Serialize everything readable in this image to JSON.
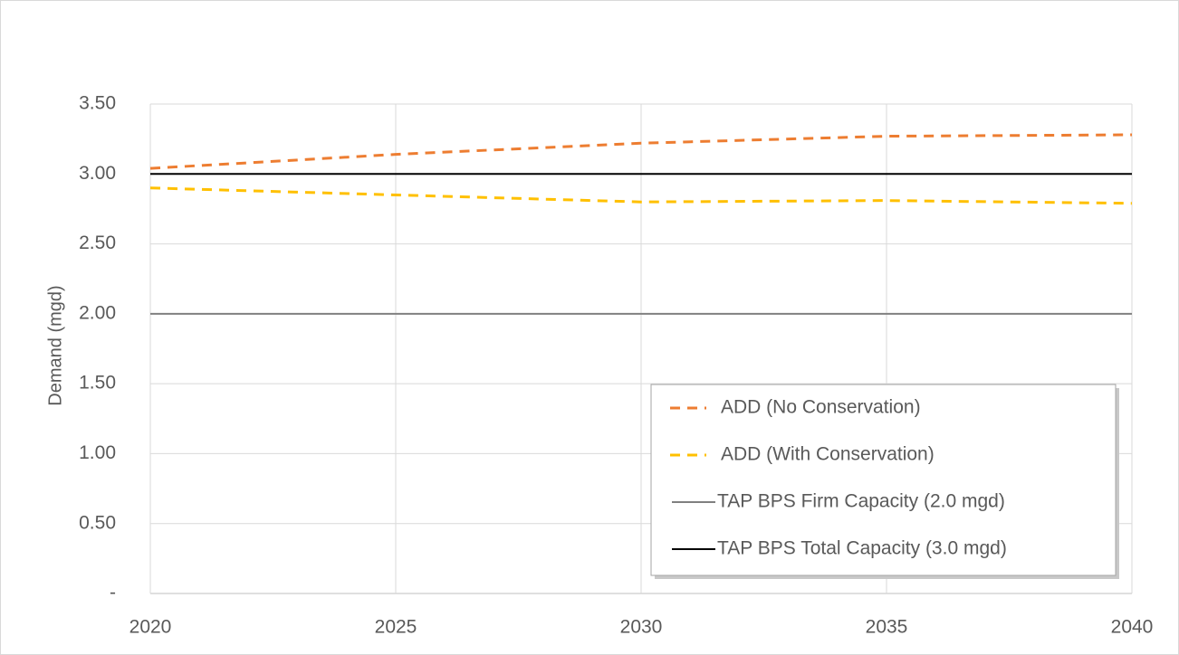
{
  "chart_data": {
    "type": "line",
    "y_label": "Demand (mgd)",
    "x": [
      2020,
      2025,
      2030,
      2035,
      2040
    ],
    "series": [
      {
        "name": "ADD (No Conservation)",
        "color": "#ED7D31",
        "dashed": true,
        "values": [
          3.04,
          3.14,
          3.22,
          3.27,
          3.28
        ]
      },
      {
        "name": "ADD (With Conservation)",
        "color": "#FFC000",
        "dashed": true,
        "values": [
          2.9,
          2.85,
          2.8,
          2.81,
          2.79
        ]
      },
      {
        "name": "TAP BPS Firm Capacity (2.0 mgd)",
        "color": "#808080",
        "dashed": false,
        "values": [
          2.0,
          2.0,
          2.0,
          2.0,
          2.0
        ]
      },
      {
        "name": "TAP BPS Total Capacity (3.0 mgd)",
        "color": "#000000",
        "dashed": false,
        "values": [
          3.0,
          3.0,
          3.0,
          3.0,
          3.0
        ]
      }
    ],
    "xlim": [
      2020,
      2040
    ],
    "xticks": [
      2020,
      2025,
      2030,
      2035,
      2040
    ],
    "ylim": [
      0,
      3.5
    ],
    "yticks": [
      {
        "value": 0,
        "label": "-"
      },
      {
        "value": 0.5,
        "label": "0.50"
      },
      {
        "value": 1.0,
        "label": "1.00"
      },
      {
        "value": 1.5,
        "label": "1.50"
      },
      {
        "value": 2.0,
        "label": "2.00"
      },
      {
        "value": 2.5,
        "label": "2.50"
      },
      {
        "value": 3.0,
        "label": "3.00"
      },
      {
        "value": 3.5,
        "label": "3.50"
      }
    ],
    "grid": true,
    "legend": "lower right"
  }
}
